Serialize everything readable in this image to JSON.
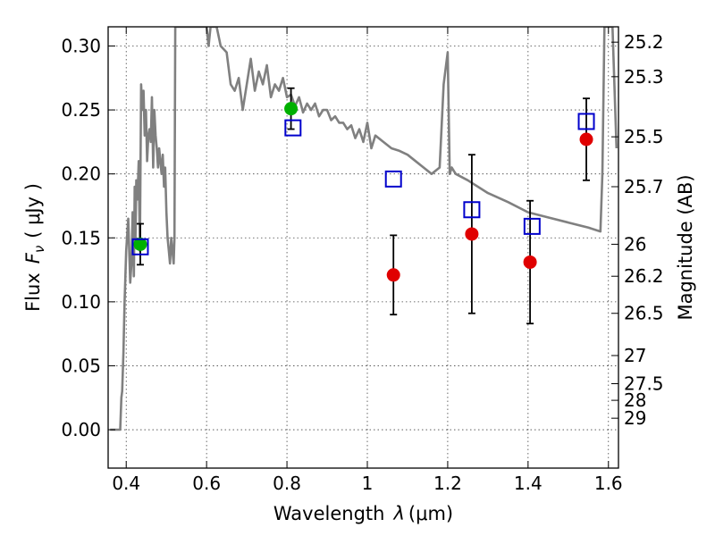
{
  "chart_data": {
    "type": "scatter",
    "xlabel_text": "Wavelength",
    "xlabel_symbol": "λ",
    "xlabel_unit": "(μm)",
    "ylabel_text": "Flux",
    "ylabel_symbol": "F",
    "ylabel_sub": "ν",
    "ylabel_unit": "( μJy )",
    "y2label": "Magnitude (AB)",
    "xlim": [
      0.355,
      1.625
    ],
    "ylim": [
      -0.03,
      0.315
    ],
    "grid": true,
    "x_ticks": [
      {
        "value": 0.4,
        "label": "0.4"
      },
      {
        "value": 0.6,
        "label": "0.6"
      },
      {
        "value": 0.8,
        "label": "0.8"
      },
      {
        "value": 1.0,
        "label": "1"
      },
      {
        "value": 1.2,
        "label": "1.2"
      },
      {
        "value": 1.4,
        "label": "1.4"
      },
      {
        "value": 1.6,
        "label": "1.6"
      }
    ],
    "y_ticks": [
      {
        "value": 0.0,
        "label": "0.00"
      },
      {
        "value": 0.05,
        "label": "0.05"
      },
      {
        "value": 0.1,
        "label": "0.10"
      },
      {
        "value": 0.15,
        "label": "0.15"
      },
      {
        "value": 0.2,
        "label": "0.20"
      },
      {
        "value": 0.25,
        "label": "0.25"
      },
      {
        "value": 0.3,
        "label": "0.30"
      }
    ],
    "y2_ticks": [
      {
        "flux": 0.303,
        "label": "25.2"
      },
      {
        "flux": 0.276,
        "label": "25.3"
      },
      {
        "flux": 0.229,
        "label": "25.5"
      },
      {
        "flux": 0.19,
        "label": "25.7"
      },
      {
        "flux": 0.145,
        "label": "26"
      },
      {
        "flux": 0.12,
        "label": "26.2"
      },
      {
        "flux": 0.091,
        "label": "26.5"
      },
      {
        "flux": 0.058,
        "label": "27"
      },
      {
        "flux": 0.036,
        "label": "27.5"
      },
      {
        "flux": 0.023,
        "label": "28"
      },
      {
        "flux": 0.009,
        "label": "29"
      }
    ],
    "series": [
      {
        "kind": "line",
        "color": "#808080",
        "x": [
          0.36,
          0.385,
          0.388,
          0.39,
          0.393,
          0.396,
          0.4,
          0.405,
          0.41,
          0.413,
          0.416,
          0.419,
          0.421,
          0.423,
          0.425,
          0.428,
          0.431,
          0.434,
          0.437,
          0.44,
          0.443,
          0.446,
          0.449,
          0.452,
          0.455,
          0.458,
          0.461,
          0.464,
          0.467,
          0.47,
          0.473,
          0.476,
          0.479,
          0.482,
          0.485,
          0.488,
          0.491,
          0.494,
          0.497,
          0.5,
          0.503,
          0.506,
          0.509,
          0.512,
          0.515,
          0.518,
          0.52,
          0.522,
          0.525,
          0.53,
          0.535,
          0.54,
          0.55,
          0.56,
          0.58,
          0.59,
          0.595,
          0.6,
          0.605,
          0.61,
          0.625,
          0.635,
          0.65,
          0.66,
          0.67,
          0.68,
          0.69,
          0.7,
          0.71,
          0.72,
          0.73,
          0.74,
          0.75,
          0.76,
          0.77,
          0.78,
          0.79,
          0.8,
          0.81,
          0.82,
          0.83,
          0.84,
          0.85,
          0.86,
          0.87,
          0.88,
          0.89,
          0.9,
          0.91,
          0.92,
          0.93,
          0.94,
          0.95,
          0.96,
          0.97,
          0.98,
          0.99,
          1.0,
          1.01,
          1.02,
          1.04,
          1.06,
          1.08,
          1.1,
          1.12,
          1.14,
          1.16,
          1.18,
          1.19,
          1.2,
          1.205,
          1.21,
          1.22,
          1.25,
          1.3,
          1.35,
          1.4,
          1.45,
          1.5,
          1.55,
          1.58,
          1.585,
          1.59,
          1.61,
          1.62
        ],
        "y": [
          0.0,
          0.0,
          0.025,
          0.03,
          0.06,
          0.1,
          0.14,
          0.165,
          0.115,
          0.13,
          0.17,
          0.12,
          0.19,
          0.15,
          0.195,
          0.18,
          0.21,
          0.14,
          0.27,
          0.25,
          0.265,
          0.23,
          0.25,
          0.21,
          0.23,
          0.235,
          0.225,
          0.26,
          0.205,
          0.25,
          0.23,
          0.22,
          0.205,
          0.22,
          0.21,
          0.2,
          0.215,
          0.19,
          0.205,
          0.17,
          0.15,
          0.14,
          0.13,
          0.15,
          0.14,
          0.13,
          0.15,
          0.315,
          0.315,
          0.315,
          0.315,
          0.315,
          0.315,
          0.315,
          0.315,
          0.315,
          0.315,
          0.315,
          0.3,
          0.315,
          0.315,
          0.3,
          0.295,
          0.27,
          0.265,
          0.275,
          0.25,
          0.27,
          0.29,
          0.265,
          0.28,
          0.27,
          0.285,
          0.26,
          0.27,
          0.265,
          0.275,
          0.26,
          0.262,
          0.253,
          0.26,
          0.248,
          0.255,
          0.25,
          0.255,
          0.245,
          0.25,
          0.25,
          0.242,
          0.245,
          0.24,
          0.24,
          0.235,
          0.238,
          0.228,
          0.235,
          0.225,
          0.24,
          0.22,
          0.23,
          0.225,
          0.22,
          0.218,
          0.215,
          0.21,
          0.205,
          0.2,
          0.205,
          0.27,
          0.295,
          0.2,
          0.205,
          0.2,
          0.195,
          0.185,
          0.178,
          0.17,
          0.166,
          0.162,
          0.158,
          0.155,
          0.2,
          0.315,
          0.315,
          0.22
        ]
      },
      {
        "kind": "points",
        "marker": "circle",
        "color": "#e00000",
        "points": [
          {
            "x": 1.065,
            "y": 0.121,
            "err_lo": 0.031,
            "err_hi": 0.031
          },
          {
            "x": 1.26,
            "y": 0.153,
            "err_lo": 0.062,
            "err_hi": 0.062
          },
          {
            "x": 1.405,
            "y": 0.131,
            "err_lo": 0.048,
            "err_hi": 0.048
          },
          {
            "x": 1.545,
            "y": 0.227,
            "err_lo": 0.032,
            "err_hi": 0.032
          }
        ]
      },
      {
        "kind": "points",
        "marker": "circle",
        "color": "#00b000",
        "points": [
          {
            "x": 0.435,
            "y": 0.145,
            "err_lo": 0.016,
            "err_hi": 0.016
          },
          {
            "x": 0.81,
            "y": 0.251,
            "err_lo": 0.016,
            "err_hi": 0.016
          }
        ]
      },
      {
        "kind": "points",
        "marker": "square-open",
        "color": "#0000cc",
        "points": [
          {
            "x": 0.435,
            "y": 0.143
          },
          {
            "x": 0.815,
            "y": 0.236
          },
          {
            "x": 1.065,
            "y": 0.196
          },
          {
            "x": 1.26,
            "y": 0.172
          },
          {
            "x": 1.41,
            "y": 0.159
          },
          {
            "x": 1.545,
            "y": 0.241
          }
        ]
      }
    ]
  }
}
